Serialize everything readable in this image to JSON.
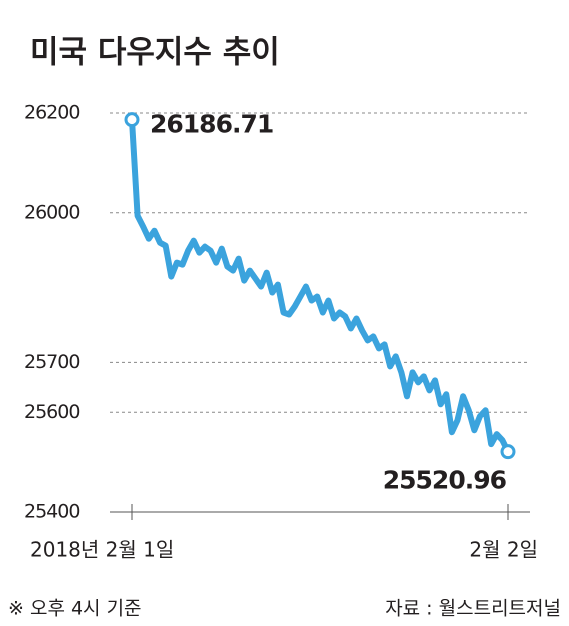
{
  "chart_data": {
    "type": "line",
    "title": "미국 다우지수 추이",
    "categories": [
      "2018년 2월 1일",
      null,
      null,
      null,
      null,
      null,
      null,
      null,
      null,
      null,
      null,
      null,
      null,
      null,
      null,
      null,
      null,
      null,
      null,
      null,
      null,
      null,
      null,
      null,
      null,
      null,
      null,
      null,
      null,
      null,
      null,
      null,
      null,
      null,
      null,
      null,
      null,
      null,
      null,
      null,
      null,
      null,
      null,
      null,
      null,
      null,
      null,
      null,
      null,
      null,
      null,
      null,
      null,
      null,
      null,
      null,
      null,
      null,
      null,
      null,
      null,
      null,
      null,
      null,
      null,
      null,
      null,
      "2월 2일"
    ],
    "series": [
      {
        "color": "#3ba3dd",
        "values": [
          26186.71,
          25994,
          25972,
          25948,
          25964,
          25940,
          25934,
          25872,
          25900,
          25896,
          25924,
          25944,
          25920,
          25932,
          25924,
          25900,
          25928,
          25892,
          25884,
          25908,
          25864,
          25884,
          25868,
          25852,
          25880,
          25840,
          25856,
          25800,
          25796,
          25812,
          25832,
          25852,
          25824,
          25832,
          25800,
          25824,
          25788,
          25800,
          25792,
          25768,
          25788,
          25764,
          25744,
          25752,
          25728,
          25736,
          25692,
          25712,
          25680,
          25632,
          25680,
          25660,
          25672,
          25644,
          25664,
          25616,
          25636,
          25560,
          25584,
          25632,
          25604,
          25564,
          25592,
          25604,
          25536,
          25556,
          25544,
          25520.96
        ]
      }
    ],
    "ylim": [
      25400,
      26200
    ],
    "yticks": [
      26200,
      26000,
      25700,
      25600,
      25400
    ],
    "grid": true,
    "footnote": "※ 오후 4시 기준",
    "source": "자료 : 월스트리트저널"
  }
}
